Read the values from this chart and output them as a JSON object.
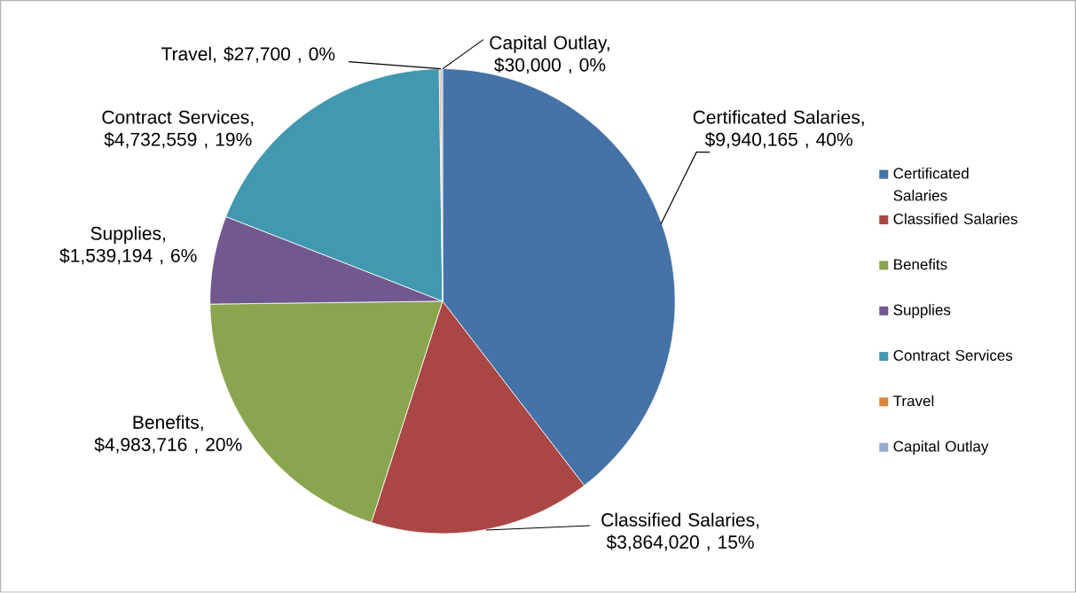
{
  "chart_data": {
    "type": "pie",
    "categories": [
      "Certificated Salaries",
      "Classified Salaries",
      "Benefits",
      "Supplies",
      "Contract Services",
      "Travel",
      "Capital Outlay"
    ],
    "values": [
      9940165,
      3864020,
      4983716,
      1539194,
      4732559,
      27700,
      30000
    ],
    "colors": [
      "#4572a7",
      "#aa4643",
      "#89a54e",
      "#71588f",
      "#4198af",
      "#db843d",
      "#93a9cf"
    ],
    "value_labels": [
      "Certificated Salaries, $9,940,165 , 40%",
      "Classified Salaries, $3,864,020 , 15%",
      "Benefits, $4,983,716 , 20%",
      "Supplies, $1,539,194 , 6%",
      "Contract Services, $4,732,559 , 19%",
      "Travel,  $27,700 , 0%",
      "Capital Outlay, $30,000 , 0%"
    ],
    "legend": "right"
  }
}
